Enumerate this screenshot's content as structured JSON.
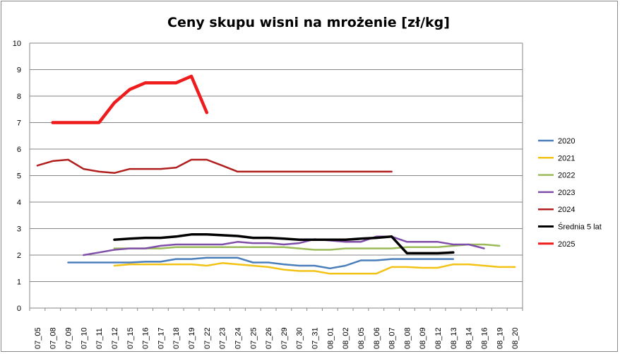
{
  "chart_data": {
    "type": "line",
    "title": "Ceny skupu wisni na mrożenie [zł/kg]",
    "xlabel": "",
    "ylabel": "",
    "ylim": [
      0,
      10
    ],
    "yticks": [
      0,
      1,
      2,
      3,
      4,
      5,
      6,
      7,
      8,
      9,
      10
    ],
    "grid": "horizontal",
    "legend_position": "right",
    "categories": [
      "07_05",
      "07_08",
      "07_09",
      "07_10",
      "07_11",
      "07_12",
      "07_15",
      "07_16",
      "07_17",
      "07_18",
      "07_19",
      "07_22",
      "07_23",
      "07_24",
      "07_25",
      "07_26",
      "07_29",
      "07_30",
      "07_31",
      "08_01",
      "08_02",
      "08_05",
      "08_06",
      "08_07",
      "08_08",
      "08_09",
      "08_12",
      "08_13",
      "08_14",
      "08_16",
      "08_19",
      "08_20"
    ],
    "series": [
      {
        "name": "2020",
        "color": "#4a7ebb",
        "width": 2.5,
        "values": [
          null,
          null,
          1.72,
          1.72,
          1.72,
          1.72,
          1.72,
          1.75,
          1.75,
          1.85,
          1.85,
          1.9,
          1.9,
          1.9,
          1.72,
          1.72,
          1.65,
          1.6,
          1.6,
          1.5,
          1.6,
          1.8,
          1.8,
          1.85,
          1.85,
          1.85,
          1.85,
          1.85,
          null,
          null,
          null,
          null
        ]
      },
      {
        "name": "2021",
        "color": "#f2c314",
        "width": 2.5,
        "values": [
          null,
          null,
          null,
          null,
          null,
          1.6,
          1.65,
          1.65,
          1.65,
          1.65,
          1.65,
          1.6,
          1.7,
          1.65,
          1.6,
          1.55,
          1.45,
          1.4,
          1.4,
          1.3,
          1.3,
          1.3,
          1.3,
          1.55,
          1.55,
          1.52,
          1.52,
          1.65,
          1.65,
          1.6,
          1.55,
          1.55
        ]
      },
      {
        "name": "2022",
        "color": "#9bbb59",
        "width": 2.5,
        "values": [
          null,
          null,
          null,
          null,
          null,
          2.25,
          2.25,
          2.25,
          2.25,
          2.3,
          2.3,
          2.3,
          2.3,
          2.3,
          2.3,
          2.3,
          2.3,
          2.25,
          2.2,
          2.2,
          2.25,
          2.25,
          2.25,
          2.25,
          2.3,
          2.3,
          2.3,
          2.35,
          2.4,
          2.4,
          2.35,
          null
        ]
      },
      {
        "name": "2023",
        "color": "#7f4ea8",
        "width": 2.5,
        "values": [
          null,
          null,
          null,
          2.0,
          2.1,
          2.2,
          2.25,
          2.25,
          2.35,
          2.4,
          2.4,
          2.4,
          2.4,
          2.5,
          2.45,
          2.45,
          2.4,
          2.45,
          2.6,
          2.55,
          2.5,
          2.5,
          2.7,
          2.7,
          2.5,
          2.5,
          2.5,
          2.4,
          2.4,
          2.25,
          null,
          null
        ]
      },
      {
        "name": "2024",
        "color": "#b01e1e",
        "width": 2.5,
        "values": [
          5.38,
          5.55,
          5.6,
          5.25,
          5.15,
          5.1,
          5.25,
          5.25,
          5.25,
          5.3,
          5.6,
          5.6,
          5.38,
          5.15,
          5.15,
          5.15,
          5.15,
          5.15,
          5.15,
          5.15,
          5.15,
          5.15,
          5.15,
          5.15,
          null,
          null,
          null,
          null,
          null,
          null,
          null,
          null
        ]
      },
      {
        "name": "Średnia 5 lat",
        "color": "#000000",
        "width": 3.5,
        "values": [
          null,
          null,
          null,
          null,
          null,
          2.58,
          2.62,
          2.65,
          2.65,
          2.7,
          2.78,
          2.78,
          2.75,
          2.72,
          2.65,
          2.65,
          2.62,
          2.58,
          2.58,
          2.58,
          2.58,
          2.62,
          2.65,
          2.7,
          2.07,
          2.07,
          2.07,
          2.1,
          null,
          null,
          null,
          null
        ]
      },
      {
        "name": "2025",
        "color": "#ee1c1c",
        "width": 4.5,
        "values": [
          null,
          7.0,
          7.0,
          7.0,
          7.0,
          7.75,
          8.25,
          8.5,
          8.5,
          8.5,
          8.75,
          7.38,
          null,
          null,
          null,
          null,
          null,
          null,
          null,
          null,
          null,
          null,
          null,
          null,
          null,
          null,
          null,
          null,
          null,
          null,
          null,
          null
        ]
      }
    ]
  }
}
